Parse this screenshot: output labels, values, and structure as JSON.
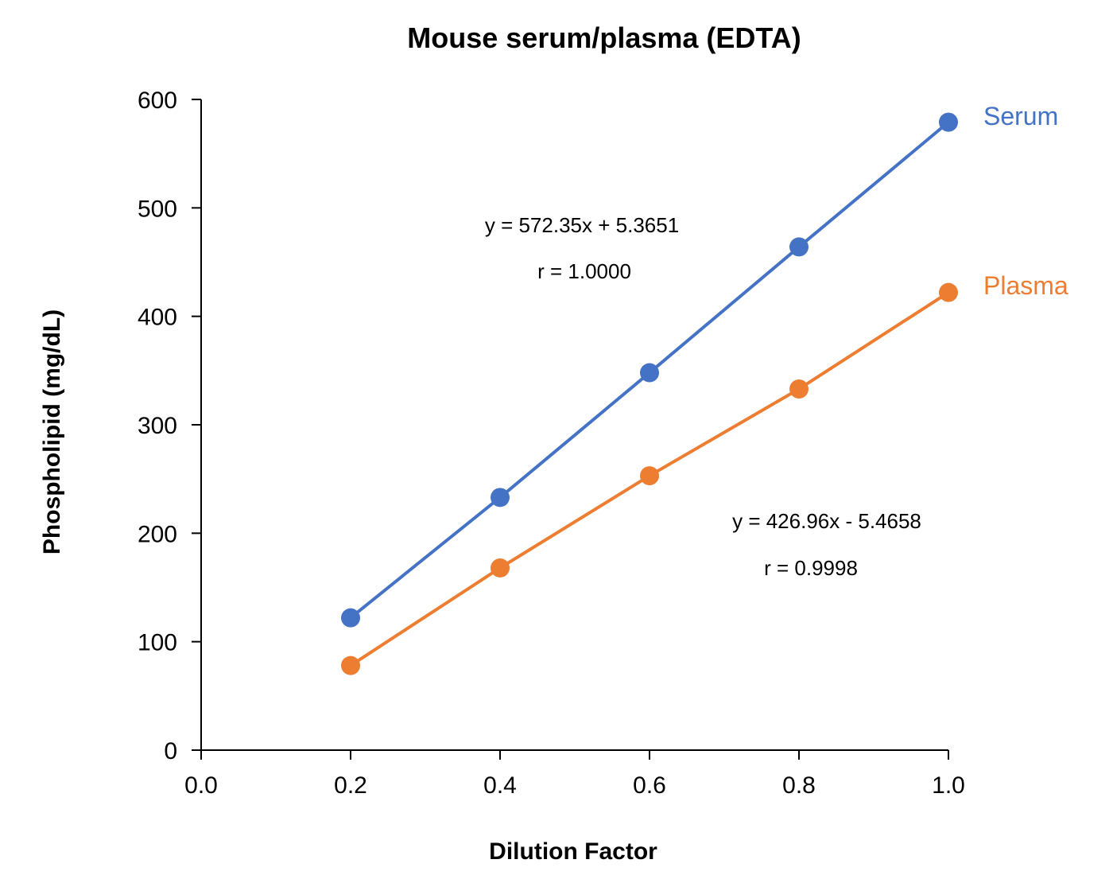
{
  "chart_data": {
    "type": "line",
    "title": "Mouse serum/plasma (EDTA)",
    "xlabel": "Dilution Factor",
    "ylabel": "Phospholipid (mg/dL)",
    "xlim": [
      0,
      1.0
    ],
    "ylim": [
      0,
      600
    ],
    "xticks": [
      "0.0",
      "0.2",
      "0.4",
      "0.6",
      "0.8",
      "1.0"
    ],
    "yticks": [
      "0",
      "100",
      "200",
      "300",
      "400",
      "500",
      "600"
    ],
    "grid": false,
    "x": [
      0.2,
      0.4,
      0.6,
      0.8,
      1.0
    ],
    "series": [
      {
        "name": "Serum",
        "color": "#4472C4",
        "values": [
          122,
          233,
          348,
          464,
          579
        ],
        "equation": "y = 572.35x + 5.3651",
        "r": "r = 1.0000"
      },
      {
        "name": "Plasma",
        "color": "#ED7D31",
        "values": [
          78,
          168,
          253,
          333,
          422
        ],
        "equation": "y = 426.96x - 5.4658",
        "r": "r = 0.9998"
      }
    ]
  }
}
